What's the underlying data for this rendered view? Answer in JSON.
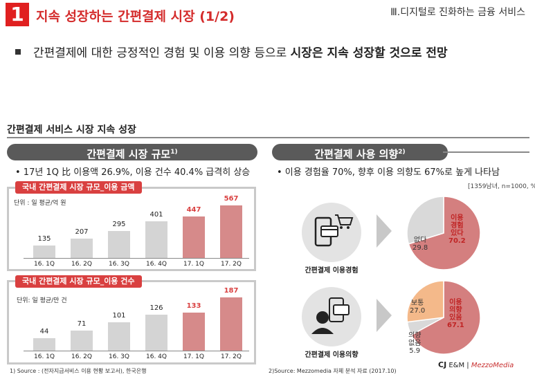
{
  "header": {
    "slide_number": "1",
    "title": "지속 성장하는 간편결제 시장 (1/2)",
    "section": "Ⅲ.디지털로 진화하는 금융 서비스"
  },
  "main_bullet": {
    "prefix": "간편결제에 대한 긍정적인 경험 및 이용 의향 등으로 ",
    "emphasis": "시장은 지속 성장할 것으로 전망"
  },
  "sub_heading": "간편결제 서비스 시장 지속 성장",
  "left_panel": {
    "title": "간편결제 시장 규모",
    "title_sup": "1)",
    "bullet": "• 17년 1Q 比 이용액 26.9%, 이용 건수 40.4% 급격히 상승"
  },
  "right_panel": {
    "title": "간편결제 사용 의향",
    "title_sup": "2)",
    "bullet": "• 이용 경험율 70%, 향후 이용 의향도 67%로 높게 나타남",
    "sample_note": "[1359남녀, n=1000, %]",
    "icon1_caption": "간편결제 이용경험",
    "icon2_caption": "간편결제 이용의향"
  },
  "colors": {
    "accent_red": "#d94040",
    "bar_gray": "#d4d4d4",
    "bar_red": "#d68a8a",
    "pie_red": "#d47f7f",
    "pie_gray": "#d9d9d9",
    "pie_orange": "#f4b98a"
  },
  "chart_data": [
    {
      "type": "bar",
      "title": "국내 간편결제 시장 규모_이용 금액",
      "unit": "단위 : 일 평균/억 원",
      "categories": [
        "16. 1Q",
        "16. 2Q",
        "16. 3Q",
        "16. 4Q",
        "17. 1Q",
        "17. 2Q"
      ],
      "values": [
        135,
        207,
        295,
        401,
        447,
        567
      ],
      "highlight": [
        false,
        false,
        false,
        false,
        true,
        true
      ],
      "ylim": [
        0,
        600
      ]
    },
    {
      "type": "bar",
      "title": "국내 간편결제 시장 규모_이용 건수",
      "unit": "단위: 일 평균/만 건",
      "categories": [
        "16. 1Q",
        "16. 2Q",
        "16. 3Q",
        "16. 4Q",
        "17. 1Q",
        "17. 2Q"
      ],
      "values": [
        44,
        71,
        101,
        126,
        133,
        187
      ],
      "highlight": [
        false,
        false,
        false,
        false,
        true,
        true
      ],
      "ylim": [
        0,
        200
      ]
    },
    {
      "type": "pie",
      "title": "간편결제 이용경험",
      "slices": [
        {
          "label": "이용\n경험\n있다",
          "value": 70.2,
          "display": "70.2",
          "color": "#d47f7f"
        },
        {
          "label": "없다",
          "value": 29.8,
          "display": "29.8",
          "color": "#d9d9d9"
        }
      ]
    },
    {
      "type": "pie",
      "title": "간편결제 이용의향",
      "slices": [
        {
          "label": "이용\n의향\n있음",
          "value": 67.1,
          "display": "67.1",
          "color": "#d47f7f"
        },
        {
          "label": "의향\n없음",
          "value": 5.9,
          "display": "5.9",
          "color": "#d9d9d9"
        },
        {
          "label": "보통",
          "value": 27.0,
          "display": "27.0",
          "color": "#f4b98a"
        }
      ]
    }
  ],
  "sources": {
    "left": "1) Source : (전자지급서비스 이용 현황 보고서), 한국은행",
    "right": "2)Source: Mezzomedia 자체 분석 자료 (2017.10)"
  },
  "logo": {
    "cj": "CJ",
    "em": "E&M",
    "sep": "|",
    "mezzo": "MezzoMedia"
  }
}
